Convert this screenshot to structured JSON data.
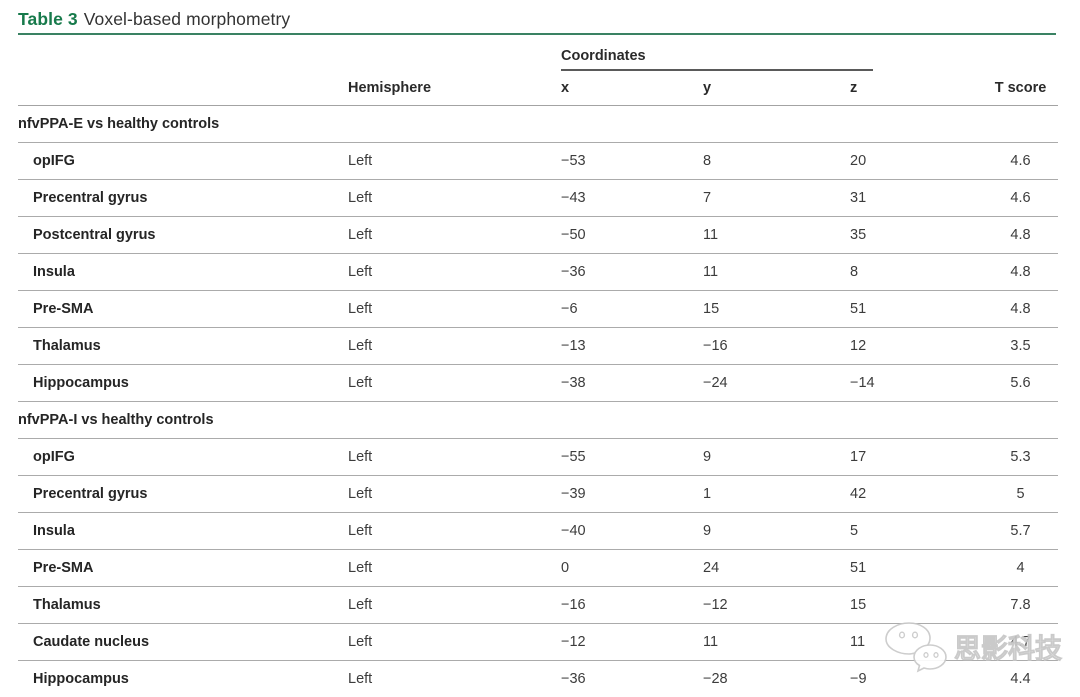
{
  "title": {
    "label": "Table 3",
    "text": "Voxel-based morphometry"
  },
  "table": {
    "columns": {
      "region": "",
      "hemisphere": "Hemisphere",
      "coordinates": "Coordinates",
      "x": "x",
      "y": "y",
      "z": "z",
      "t_score": "T score"
    },
    "sections": [
      {
        "header": "nfvPPA-E vs healthy controls",
        "rows": [
          {
            "region": "opIFG",
            "hemisphere": "Left",
            "x": "−53",
            "y": "8",
            "z": "20",
            "t": "4.6"
          },
          {
            "region": "Precentral gyrus",
            "hemisphere": "Left",
            "x": "−43",
            "y": "7",
            "z": "31",
            "t": "4.6"
          },
          {
            "region": "Postcentral gyrus",
            "hemisphere": "Left",
            "x": "−50",
            "y": "11",
            "z": "35",
            "t": "4.8"
          },
          {
            "region": "Insula",
            "hemisphere": "Left",
            "x": "−36",
            "y": "11",
            "z": "8",
            "t": "4.8"
          },
          {
            "region": "Pre-SMA",
            "hemisphere": "Left",
            "x": "−6",
            "y": "15",
            "z": "51",
            "t": "4.8"
          },
          {
            "region": "Thalamus",
            "hemisphere": "Left",
            "x": "−13",
            "y": "−16",
            "z": "12",
            "t": "3.5"
          },
          {
            "region": "Hippocampus",
            "hemisphere": "Left",
            "x": "−38",
            "y": "−24",
            "z": "−14",
            "t": "5.6"
          }
        ]
      },
      {
        "header": "nfvPPA-I vs healthy controls",
        "rows": [
          {
            "region": "opIFG",
            "hemisphere": "Left",
            "x": "−55",
            "y": "9",
            "z": "17",
            "t": "5.3"
          },
          {
            "region": "Precentral gyrus",
            "hemisphere": "Left",
            "x": "−39",
            "y": "1",
            "z": "42",
            "t": "5"
          },
          {
            "region": "Insula",
            "hemisphere": "Left",
            "x": "−40",
            "y": "9",
            "z": "5",
            "t": "5.7"
          },
          {
            "region": "Pre-SMA",
            "hemisphere": "Left",
            "x": "0",
            "y": "24",
            "z": "51",
            "t": "4"
          },
          {
            "region": "Thalamus",
            "hemisphere": "Left",
            "x": "−16",
            "y": "−12",
            "z": "15",
            "t": "7.8"
          },
          {
            "region": "Caudate nucleus",
            "hemisphere": "Left",
            "x": "−12",
            "y": "11",
            "z": "11",
            "t": "4.7"
          },
          {
            "region": "Hippocampus",
            "hemisphere": "Left",
            "x": "−36",
            "y": "−28",
            "z": "−9",
            "t": "4.4"
          }
        ]
      }
    ]
  },
  "watermark": {
    "text": "思影科技"
  },
  "colors": {
    "accent_green": "#177a4b",
    "rule_green": "#3a8263",
    "header_text": "#2a2a2a",
    "body_text": "#3c3c3c",
    "row_line": "#ababab"
  }
}
